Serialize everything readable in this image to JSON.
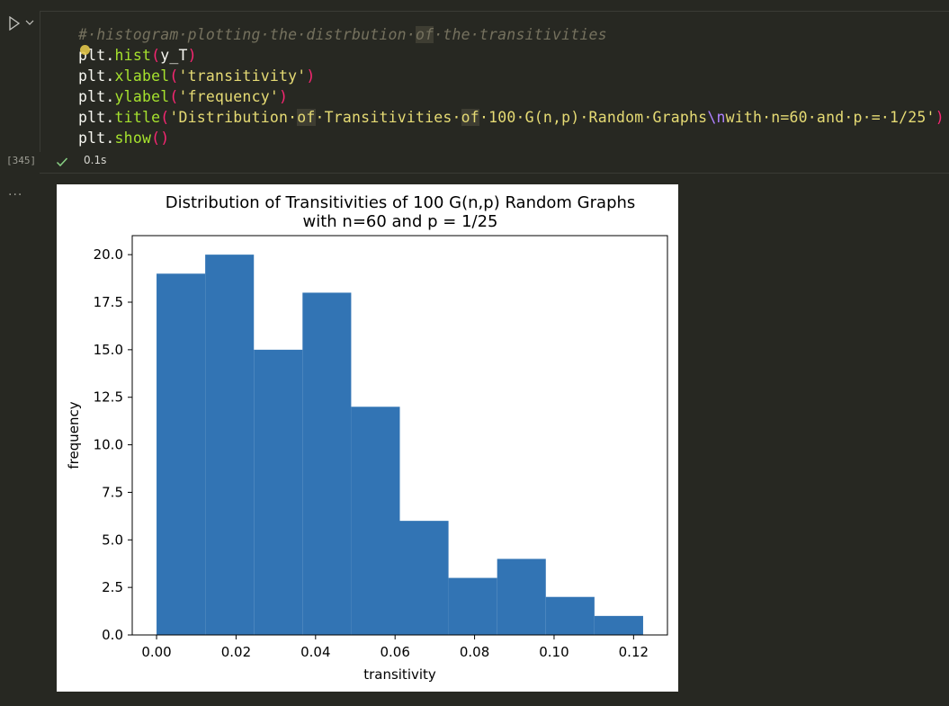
{
  "cell": {
    "execution_count": "[345]",
    "status_time": "0.1s",
    "code_lines": [
      {
        "segments": [
          {
            "t": "#·histogram·plotting·the·distrbution·",
            "c": "comment"
          },
          {
            "t": "of",
            "c": "comment kw-hl"
          },
          {
            "t": "·the·transitivities",
            "c": "comment"
          }
        ]
      },
      {
        "segments": [
          {
            "t": "plt",
            "c": ""
          },
          {
            "t": ".",
            "c": ""
          },
          {
            "t": "hist",
            "c": "fn"
          },
          {
            "t": "(",
            "c": "paren"
          },
          {
            "t": "y_T",
            "c": ""
          },
          {
            "t": ")",
            "c": "paren"
          }
        ]
      },
      {
        "segments": [
          {
            "t": "plt",
            "c": ""
          },
          {
            "t": ".",
            "c": ""
          },
          {
            "t": "xlabel",
            "c": "fn"
          },
          {
            "t": "(",
            "c": "paren"
          },
          {
            "t": "'transitivity'",
            "c": "str"
          },
          {
            "t": ")",
            "c": "paren"
          }
        ]
      },
      {
        "segments": [
          {
            "t": "plt",
            "c": ""
          },
          {
            "t": ".",
            "c": ""
          },
          {
            "t": "ylabel",
            "c": "fn"
          },
          {
            "t": "(",
            "c": "paren"
          },
          {
            "t": "'frequency'",
            "c": "str"
          },
          {
            "t": ")",
            "c": "paren"
          }
        ]
      },
      {
        "segments": [
          {
            "t": "plt",
            "c": ""
          },
          {
            "t": ".",
            "c": ""
          },
          {
            "t": "title",
            "c": "fn"
          },
          {
            "t": "(",
            "c": "paren"
          },
          {
            "t": "'Distribution·",
            "c": "str"
          },
          {
            "t": "of",
            "c": "str kw-hl"
          },
          {
            "t": "·Transitivities·",
            "c": "str"
          },
          {
            "t": "of",
            "c": "str kw-hl"
          },
          {
            "t": "·100·G(n,p)·Random·Graphs",
            "c": "str"
          },
          {
            "t": "\\n",
            "c": "esc"
          },
          {
            "t": "with·n=60·and·p·=·1/25'",
            "c": "str"
          },
          {
            "t": ")",
            "c": "paren"
          }
        ]
      },
      {
        "segments": [
          {
            "t": "plt",
            "c": ""
          },
          {
            "t": ".",
            "c": ""
          },
          {
            "t": "show",
            "c": "fn"
          },
          {
            "t": "()",
            "c": "paren"
          }
        ]
      }
    ]
  },
  "output": {
    "more_label": "..."
  },
  "chart_data": {
    "type": "bar",
    "title": "Distribution of Transitivities of 100 G(n,p) Random Graphs\nwith n=60 and p = 1/25",
    "title_lines": [
      "Distribution of Transitivities of 100 G(n,p) Random Graphs",
      "with n=60 and p = 1/25"
    ],
    "xlabel": "transitivity",
    "ylabel": "frequency",
    "bin_edges": [
      0.0,
      0.01224,
      0.02448,
      0.03672,
      0.04896,
      0.0612,
      0.07344,
      0.08568,
      0.09792,
      0.11016,
      0.1224
    ],
    "values": [
      19,
      20,
      15,
      18,
      12,
      6,
      3,
      4,
      2,
      1
    ],
    "xlim": [
      -0.00612,
      0.12852
    ],
    "ylim": [
      0,
      21
    ],
    "xticks": [
      0.0,
      0.02,
      0.04,
      0.06,
      0.08,
      0.1,
      0.12
    ],
    "xtick_labels": [
      "0.00",
      "0.02",
      "0.04",
      "0.06",
      "0.08",
      "0.10",
      "0.12"
    ],
    "yticks": [
      0.0,
      2.5,
      5.0,
      7.5,
      10.0,
      12.5,
      15.0,
      17.5,
      20.0
    ],
    "ytick_labels": [
      "0.0",
      "2.5",
      "5.0",
      "7.5",
      "10.0",
      "12.5",
      "15.0",
      "17.5",
      "20.0"
    ],
    "bar_color": "#3274b4",
    "grid": false
  }
}
